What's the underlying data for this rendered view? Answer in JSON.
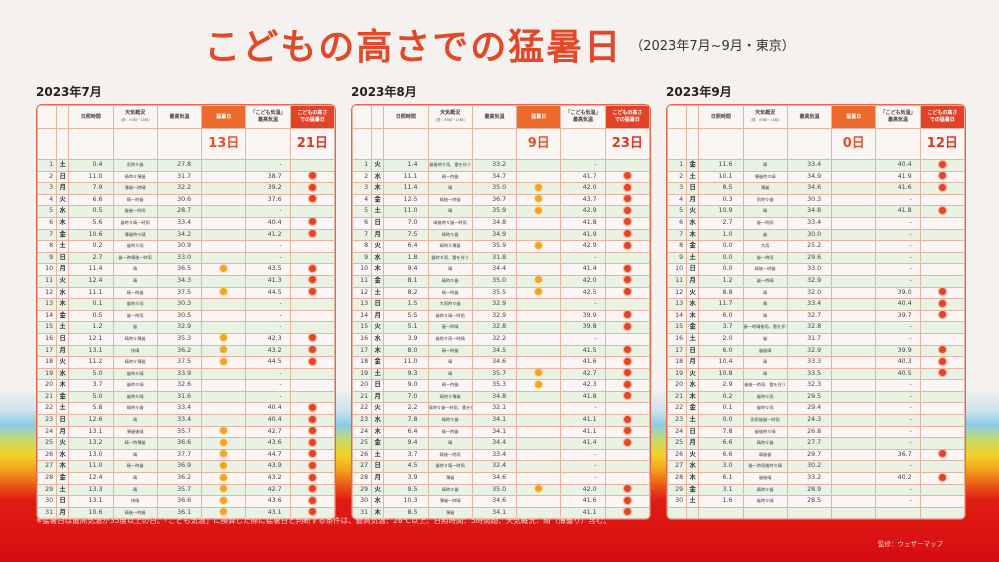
{
  "title": {
    "main": "こどもの高さでの猛暑日",
    "sub": "（2023年7月~9月・東京）"
  },
  "columns": {
    "sunshine": "日照時間",
    "weather": "天気概況",
    "weather_note": "(昼：06時~18時)",
    "max_temp": "最高気温",
    "mosho": "猛暑日",
    "kodomo_temp_1": "「こども気温」",
    "kodomo_temp_2": "最高気温",
    "kodomo_mosho_1": "こどもの高さ",
    "kodomo_mosho_2": "での猛暑日"
  },
  "colors": {
    "accent_orange": "#ec6a2c",
    "accent_red": "#e24326",
    "title_red": "#e04a2a"
  },
  "icons": {
    "mosho": "sun-orange-icon",
    "kodomo": "sun-red-icon"
  },
  "months": [
    {
      "label": "2023年7月",
      "mosho_total": "13日",
      "kodomo_total": "21日",
      "rows": [
        [
          "1",
          "土",
          "0.4",
          "雨時々曇",
          "27.8",
          false,
          "-",
          false
        ],
        [
          "2",
          "日",
          "11.0",
          "晴時々薄曇",
          "31.7",
          false,
          "38.7",
          true
        ],
        [
          "3",
          "月",
          "7.9",
          "薄曇一時晴",
          "32.2",
          false,
          "39.2",
          true
        ],
        [
          "4",
          "火",
          "6.6",
          "晴一時曇",
          "30.6",
          false,
          "37.6",
          true
        ],
        [
          "5",
          "水",
          "0.5",
          "曇後一時雨",
          "28.7",
          false,
          "-",
          false
        ],
        [
          "6",
          "木",
          "5.6",
          "曇時々晴一時雨",
          "33.4",
          false,
          "40.4",
          true
        ],
        [
          "7",
          "金",
          "10.6",
          "薄曇時々晴",
          "34.2",
          false,
          "41.2",
          true
        ],
        [
          "8",
          "土",
          "0.2",
          "曇時々雨",
          "30.9",
          false,
          "-",
          false
        ],
        [
          "9",
          "日",
          "2.7",
          "曇一時晴後一時雨",
          "33.0",
          false,
          "-",
          false
        ],
        [
          "10",
          "月",
          "11.4",
          "晴",
          "36.5",
          true,
          "43.5",
          true
        ],
        [
          "11",
          "火",
          "12.4",
          "晴",
          "34.3",
          false,
          "41.3",
          true
        ],
        [
          "12",
          "水",
          "11.1",
          "晴一時曇",
          "37.5",
          true,
          "44.5",
          true
        ],
        [
          "13",
          "木",
          "0.1",
          "曇時々雨",
          "30.3",
          false,
          "-",
          false
        ],
        [
          "14",
          "金",
          "0.5",
          "曇一時雨",
          "30.5",
          false,
          "-",
          false
        ],
        [
          "15",
          "土",
          "1.2",
          "曇",
          "32.9",
          false,
          "-",
          false
        ],
        [
          "16",
          "日",
          "12.1",
          "晴時々薄曇",
          "35.3",
          true,
          "42.3",
          true
        ],
        [
          "17",
          "月",
          "13.1",
          "快晴",
          "36.2",
          true,
          "43.2",
          true
        ],
        [
          "18",
          "火",
          "11.2",
          "晴時々薄曇",
          "37.5",
          true,
          "44.5",
          true
        ],
        [
          "19",
          "水",
          "5.0",
          "曇時々晴",
          "33.9",
          false,
          "-",
          false
        ],
        [
          "20",
          "木",
          "3.7",
          "曇時々晴",
          "32.6",
          false,
          "-",
          false
        ],
        [
          "21",
          "金",
          "5.0",
          "曇時々晴",
          "31.6",
          false,
          "-",
          false
        ],
        [
          "22",
          "土",
          "5.8",
          "晴時々曇",
          "33.4",
          false,
          "40.4",
          true
        ],
        [
          "23",
          "日",
          "12.6",
          "晴",
          "33.4",
          false,
          "40.4",
          true
        ],
        [
          "24",
          "月",
          "13.1",
          "薄曇後晴",
          "35.7",
          true,
          "42.7",
          true
        ],
        [
          "25",
          "火",
          "13.2",
          "晴一時薄曇",
          "36.6",
          true,
          "43.6",
          true
        ],
        [
          "26",
          "水",
          "13.0",
          "晴",
          "37.7",
          true,
          "44.7",
          true
        ],
        [
          "27",
          "木",
          "11.0",
          "晴一時曇",
          "36.9",
          true,
          "43.9",
          true
        ],
        [
          "28",
          "金",
          "12.4",
          "晴",
          "36.2",
          true,
          "43.2",
          true
        ],
        [
          "29",
          "土",
          "13.3",
          "晴",
          "35.7",
          true,
          "42.7",
          true
        ],
        [
          "30",
          "日",
          "13.1",
          "快晴",
          "36.6",
          true,
          "43.6",
          true
        ],
        [
          "31",
          "月",
          "10.6",
          "晴後一時曇",
          "36.1",
          true,
          "43.1",
          true
        ]
      ]
    },
    {
      "label": "2023年8月",
      "mosho_total": "9日",
      "kodomo_total": "23日",
      "rows": [
        [
          "1",
          "火",
          "1.4",
          "曇後時々雨、雷を伴う",
          "33.2",
          false,
          "-",
          false
        ],
        [
          "2",
          "水",
          "11.1",
          "晴一時曇",
          "34.7",
          false,
          "41.7",
          true
        ],
        [
          "3",
          "木",
          "11.4",
          "晴",
          "35.0",
          true,
          "42.0",
          true
        ],
        [
          "4",
          "金",
          "12.5",
          "晴後一時曇",
          "36.7",
          true,
          "43.7",
          true
        ],
        [
          "5",
          "土",
          "11.0",
          "晴",
          "35.9",
          true,
          "42.9",
          true
        ],
        [
          "6",
          "日",
          "7.0",
          "晴後時々曇一時雨",
          "34.8",
          false,
          "41.8",
          true
        ],
        [
          "7",
          "月",
          "7.5",
          "晴時々曇",
          "34.9",
          false,
          "41.9",
          true
        ],
        [
          "8",
          "火",
          "6.4",
          "晴時々薄曇",
          "35.9",
          true,
          "42.9",
          true
        ],
        [
          "9",
          "水",
          "1.8",
          "曇時々雨、雷を伴う",
          "31.8",
          false,
          "-",
          false
        ],
        [
          "10",
          "木",
          "9.4",
          "晴",
          "34.4",
          false,
          "41.4",
          true
        ],
        [
          "11",
          "金",
          "8.1",
          "晴時々曇",
          "35.0",
          true,
          "42.0",
          true
        ],
        [
          "12",
          "土",
          "8.2",
          "晴一時曇",
          "35.5",
          true,
          "42.5",
          true
        ],
        [
          "13",
          "日",
          "1.5",
          "大雨時々曇",
          "32.9",
          false,
          "-",
          false
        ],
        [
          "14",
          "月",
          "5.5",
          "曇時々晴一時雨",
          "32.9",
          false,
          "39.9",
          true
        ],
        [
          "15",
          "火",
          "5.1",
          "曇一時晴",
          "32.8",
          false,
          "39.8",
          true
        ],
        [
          "16",
          "水",
          "3.9",
          "曇時々雨一時晴",
          "32.2",
          false,
          "-",
          false
        ],
        [
          "17",
          "木",
          "8.0",
          "晴一時曇",
          "34.5",
          false,
          "41.5",
          true
        ],
        [
          "18",
          "金",
          "11.0",
          "晴",
          "34.6",
          false,
          "41.6",
          true
        ],
        [
          "19",
          "土",
          "9.3",
          "晴",
          "35.7",
          true,
          "42.7",
          true
        ],
        [
          "20",
          "日",
          "9.0",
          "晴一時曇",
          "35.3",
          true,
          "42.3",
          true
        ],
        [
          "21",
          "月",
          "7.0",
          "晴時々薄曇",
          "34.8",
          false,
          "41.8",
          true
        ],
        [
          "22",
          "火",
          "2.2",
          "晴時々曇一時雨、雷を伴う",
          "32.1",
          false,
          "-",
          false
        ],
        [
          "23",
          "水",
          "7.8",
          "晴時々曇",
          "34.1",
          false,
          "41.1",
          true
        ],
        [
          "24",
          "木",
          "6.4",
          "晴一時曇",
          "34.1",
          false,
          "41.1",
          true
        ],
        [
          "25",
          "金",
          "9.4",
          "晴",
          "34.4",
          false,
          "41.4",
          true
        ],
        [
          "26",
          "土",
          "3.7",
          "晴後一時雨",
          "33.4",
          false,
          "-",
          false
        ],
        [
          "27",
          "日",
          "4.5",
          "曇時々晴一時雨",
          "32.4",
          false,
          "-",
          false
        ],
        [
          "28",
          "月",
          "3.9",
          "薄曇",
          "34.6",
          false,
          "-",
          false
        ],
        [
          "29",
          "火",
          "9.5",
          "晴時々曇",
          "35.0",
          true,
          "42.0",
          true
        ],
        [
          "30",
          "水",
          "10.3",
          "薄曇一時晴",
          "34.6",
          false,
          "41.6",
          true
        ],
        [
          "31",
          "木",
          "8.5",
          "薄曇",
          "34.1",
          false,
          "41.1",
          true
        ]
      ]
    },
    {
      "label": "2023年9月",
      "mosho_total": "0日",
      "kodomo_total": "12日",
      "rows": [
        [
          "1",
          "金",
          "11.6",
          "晴",
          "33.4",
          false,
          "40.4",
          true
        ],
        [
          "2",
          "土",
          "10.1",
          "薄曇時々晴",
          "34.9",
          false,
          "41.9",
          true
        ],
        [
          "3",
          "日",
          "8.5",
          "薄曇",
          "34.6",
          false,
          "41.6",
          true
        ],
        [
          "4",
          "月",
          "0.3",
          "雨時々曇",
          "30.3",
          false,
          "-",
          false
        ],
        [
          "5",
          "火",
          "10.9",
          "晴",
          "34.8",
          false,
          "41.8",
          true
        ],
        [
          "6",
          "水",
          "2.7",
          "曇一時雨",
          "33.4",
          false,
          "-",
          false
        ],
        [
          "7",
          "木",
          "1.0",
          "曇",
          "30.0",
          false,
          "-",
          false
        ],
        [
          "8",
          "金",
          "0.0",
          "大雨",
          "25.2",
          false,
          "-",
          false
        ],
        [
          "9",
          "土",
          "0.0",
          "曇一時雨",
          "29.6",
          false,
          "-",
          false
        ],
        [
          "10",
          "日",
          "0.0",
          "晴後一時曇",
          "33.0",
          false,
          "-",
          false
        ],
        [
          "11",
          "月",
          "1.2",
          "曇一時晴",
          "32.9",
          false,
          "-",
          false
        ],
        [
          "12",
          "火",
          "8.8",
          "晴",
          "32.0",
          false,
          "39.0",
          true
        ],
        [
          "13",
          "水",
          "11.7",
          "晴",
          "33.4",
          false,
          "40.4",
          true
        ],
        [
          "14",
          "木",
          "6.0",
          "晴",
          "32.7",
          false,
          "39.7",
          true
        ],
        [
          "15",
          "金",
          "3.7",
          "曇一時晴後雨、雷を伴う",
          "32.8",
          false,
          "-",
          false
        ],
        [
          "16",
          "土",
          "2.0",
          "曇",
          "31.7",
          false,
          "-",
          false
        ],
        [
          "17",
          "日",
          "6.0",
          "曇後晴",
          "32.9",
          false,
          "39.9",
          true
        ],
        [
          "18",
          "月",
          "10.4",
          "晴",
          "33.3",
          false,
          "40.3",
          true
        ],
        [
          "19",
          "火",
          "10.8",
          "晴",
          "33.5",
          false,
          "40.5",
          true
        ],
        [
          "20",
          "水",
          "2.9",
          "曇後一時雨、雷を伴う",
          "32.3",
          false,
          "-",
          false
        ],
        [
          "21",
          "木",
          "0.2",
          "曇時々雨",
          "29.5",
          false,
          "-",
          false
        ],
        [
          "22",
          "金",
          "0.1",
          "曇時々雨",
          "29.4",
          false,
          "-",
          false
        ],
        [
          "23",
          "土",
          "0.0",
          "雨雨後曇一時雨",
          "24.3",
          false,
          "-",
          false
        ],
        [
          "24",
          "日",
          "7.8",
          "曇後時々晴",
          "26.8",
          false,
          "-",
          false
        ],
        [
          "25",
          "月",
          "6.6",
          "晴時々曇",
          "27.7",
          false,
          "-",
          false
        ],
        [
          "26",
          "火",
          "6.6",
          "晴後曇",
          "29.7",
          false,
          "36.7",
          true
        ],
        [
          "27",
          "水",
          "3.0",
          "曇一時雨後時々晴",
          "30.2",
          false,
          "-",
          false
        ],
        [
          "28",
          "木",
          "6.1",
          "曇後晴",
          "33.2",
          false,
          "40.2",
          true
        ],
        [
          "29",
          "金",
          "3.1",
          "晴時々曇",
          "28.9",
          false,
          "-",
          false
        ],
        [
          "30",
          "土",
          "1.6",
          "曇時々晴",
          "28.5",
          false,
          "-",
          false
        ]
      ]
    }
  ],
  "footnote": "※猛暑日は最高気温が35度以上の日。「こども気温」に換算した際に猛暑日と判断する条件は、最高気温：28℃以上、日照時間：5時間超、天気概況：晴（薄曇り）含む。",
  "credit": "監修：ウェザーマップ"
}
